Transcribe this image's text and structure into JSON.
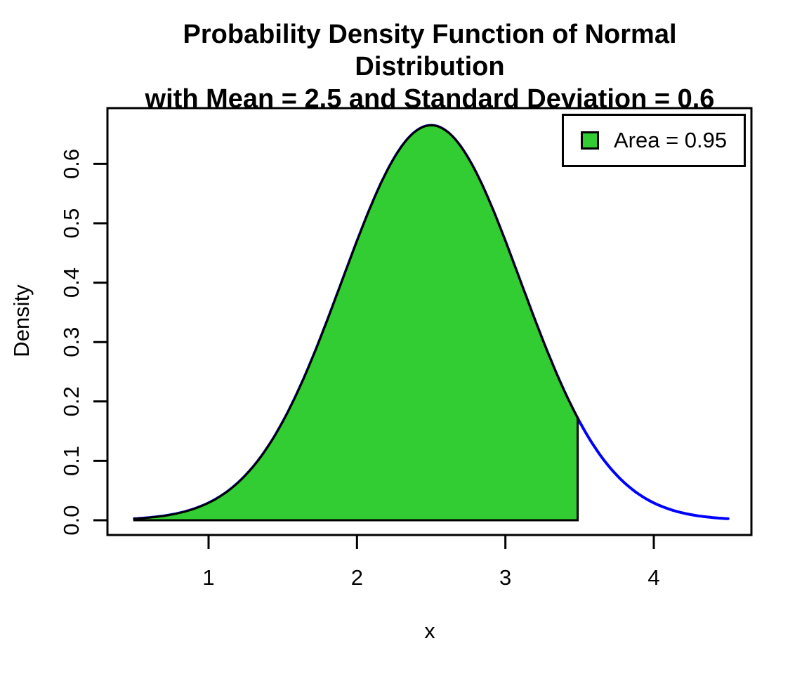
{
  "title": {
    "line1": "Probability Density Function of Normal Distribution",
    "line2": "with Mean = 2.5 and Standard Deviation = 0.6"
  },
  "chart_data": {
    "type": "area",
    "distribution": "normal",
    "mean": 2.5,
    "sd": 0.6,
    "x_range": [
      0.5,
      4.5
    ],
    "shade_range": [
      0.5,
      3.4869
    ],
    "shade_area": 0.95,
    "xlabel": "x",
    "ylabel": "Density",
    "xticks": [
      "1",
      "2",
      "3",
      "4"
    ],
    "yticks": [
      "0.0",
      "0.1",
      "0.2",
      "0.3",
      "0.4",
      "0.5",
      "0.6"
    ],
    "xlim": [
      0.34,
      4.66
    ],
    "ylim": [
      0,
      0.695
    ],
    "grid": false,
    "legend": {
      "label": "Area = 0.95",
      "position": "topright"
    },
    "colors": {
      "curve": "#0000FF",
      "fill": "#32CD32",
      "border": "#000000",
      "background": "#FFFFFF"
    }
  }
}
